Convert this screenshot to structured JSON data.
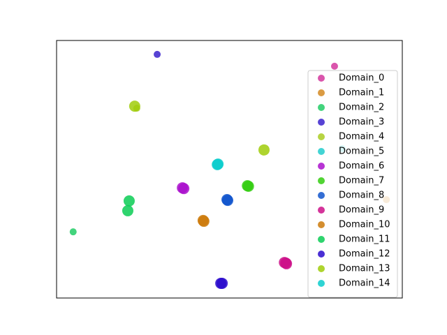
{
  "chart_data": {
    "type": "scatter",
    "xlim": [
      0,
      1
    ],
    "ylim": [
      0,
      1
    ],
    "legend": "upper right",
    "series": [
      {
        "name": "Domain_0",
        "color": "#d4379e",
        "size": 5,
        "x": [
          0.804
        ],
        "y": [
          0.9
        ]
      },
      {
        "name": "Domain_1",
        "color": "#d48a22",
        "size": 5,
        "x": [
          0.954
        ],
        "y": [
          0.382
        ]
      },
      {
        "name": "Domain_2",
        "color": "#22cc66",
        "size": 5,
        "x": [
          0.048
        ],
        "y": [
          0.257
        ]
      },
      {
        "name": "Domain_3",
        "color": "#3a22cc",
        "size": 5,
        "x": [
          0.291
        ],
        "y": [
          0.946
        ]
      },
      {
        "name": "Domain_4",
        "color": "#aacc22",
        "size": 5,
        "x": [
          0.232
        ],
        "y": [
          0.737
        ]
      },
      {
        "name": "Domain_5",
        "color": "#22cccc",
        "size": 5,
        "x": [
          0.826
        ],
        "y": [
          0.58
        ]
      },
      {
        "name": "Domain_6",
        "color": "#aa11cc",
        "size": 8,
        "x": [
          0.364,
          0.368
        ],
        "y": [
          0.428,
          0.425
        ]
      },
      {
        "name": "Domain_7",
        "color": "#33cc11",
        "size": 8,
        "x": [
          0.552,
          0.555
        ],
        "y": [
          0.436,
          0.434
        ]
      },
      {
        "name": "Domain_8",
        "color": "#1155cc",
        "size": 8,
        "x": [
          0.493,
          0.495
        ],
        "y": [
          0.382,
          0.379
        ]
      },
      {
        "name": "Domain_9",
        "color": "#cc1188",
        "size": 8,
        "x": [
          0.663,
          0.665,
          0.659
        ],
        "y": [
          0.136,
          0.133,
          0.138
        ]
      },
      {
        "name": "Domain_10",
        "color": "#cc7a0a",
        "size": 8,
        "x": [
          0.424,
          0.426
        ],
        "y": [
          0.301,
          0.298
        ]
      },
      {
        "name": "Domain_11",
        "color": "#0acc55",
        "size": 8,
        "x": [
          0.21,
          0.206
        ],
        "y": [
          0.377,
          0.339
        ]
      },
      {
        "name": "Domain_12",
        "color": "#2a0acc",
        "size": 8,
        "x": [
          0.475,
          0.479
        ],
        "y": [
          0.057,
          0.057
        ]
      },
      {
        "name": "Domain_13",
        "color": "#a0cc0a",
        "size": 8,
        "x": [
          0.226,
          0.6
        ],
        "y": [
          0.745,
          0.575
        ]
      },
      {
        "name": "Domain_14",
        "color": "#0acccc",
        "size": 8,
        "x": [
          0.467,
          0.465
        ],
        "y": [
          0.52,
          0.518
        ]
      }
    ]
  }
}
